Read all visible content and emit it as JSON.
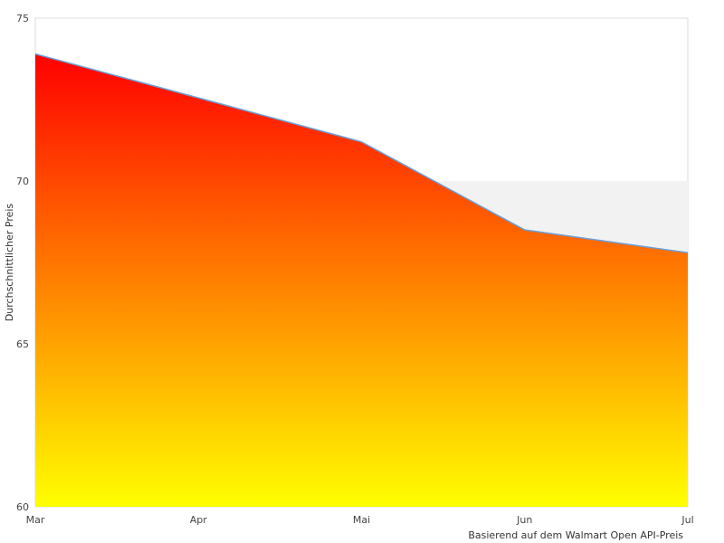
{
  "chart_data": {
    "type": "area",
    "x": [
      "Mar",
      "Apr",
      "Mai",
      "Jun",
      "Jul"
    ],
    "series": [
      {
        "values": [
          73.9,
          null,
          71.2,
          68.5,
          67.8
        ]
      }
    ],
    "point_x": [
      "Mar",
      "Mai",
      "Jun",
      "Jul"
    ],
    "point_y": [
      73.9,
      71.2,
      68.5,
      67.8
    ],
    "title": "",
    "xlabel": "",
    "ylabel": "Durchschnittlicher Preis",
    "ylim": [
      60,
      75
    ],
    "yticks": [
      "60",
      "65",
      "70",
      "75"
    ],
    "note": "Basierend auf dem Walmart Open API-Preis",
    "grid": false,
    "band": {
      "from": 60,
      "to": 70,
      "color": "#f2f2f2"
    },
    "colors": {
      "gradient_top": "#ff0000",
      "gradient_bottom": "#ffff00",
      "line": "#6a9fd8",
      "border": "#dddddd"
    }
  }
}
